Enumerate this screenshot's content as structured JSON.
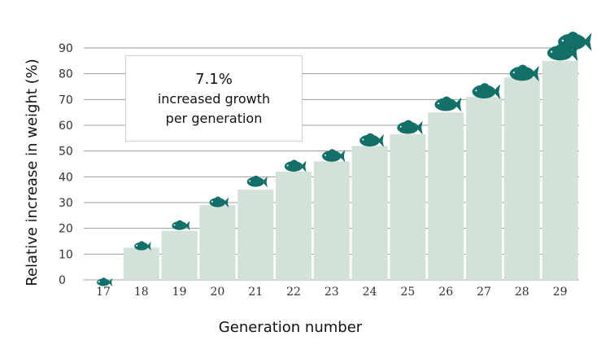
{
  "chart_data": {
    "type": "bar",
    "categories": [
      "17",
      "18",
      "19",
      "20",
      "21",
      "22",
      "23",
      "24",
      "25",
      "26",
      "27",
      "28",
      "29"
    ],
    "values": [
      0,
      12.5,
      19,
      29,
      35,
      42,
      46,
      52,
      56.5,
      65,
      71,
      78.5,
      85
    ],
    "fish_levels": [
      0,
      14,
      22,
      31,
      39,
      45,
      49,
      55,
      60,
      69,
      74,
      81,
      89
    ],
    "extra_fish_level": 93,
    "yticks": [
      0,
      10,
      20,
      30,
      40,
      50,
      60,
      70,
      80,
      90
    ],
    "ylim": [
      0,
      90
    ],
    "xlabel": "Generation number",
    "ylabel": "Relative increase in weight (%)",
    "grid": true,
    "colors": {
      "bar": "#d2e2d9",
      "fish": "#137069",
      "grid": "#9c9c9c"
    },
    "annotation": {
      "line1": "7.1%",
      "line2": "increased growth",
      "line3": "per generation"
    }
  }
}
